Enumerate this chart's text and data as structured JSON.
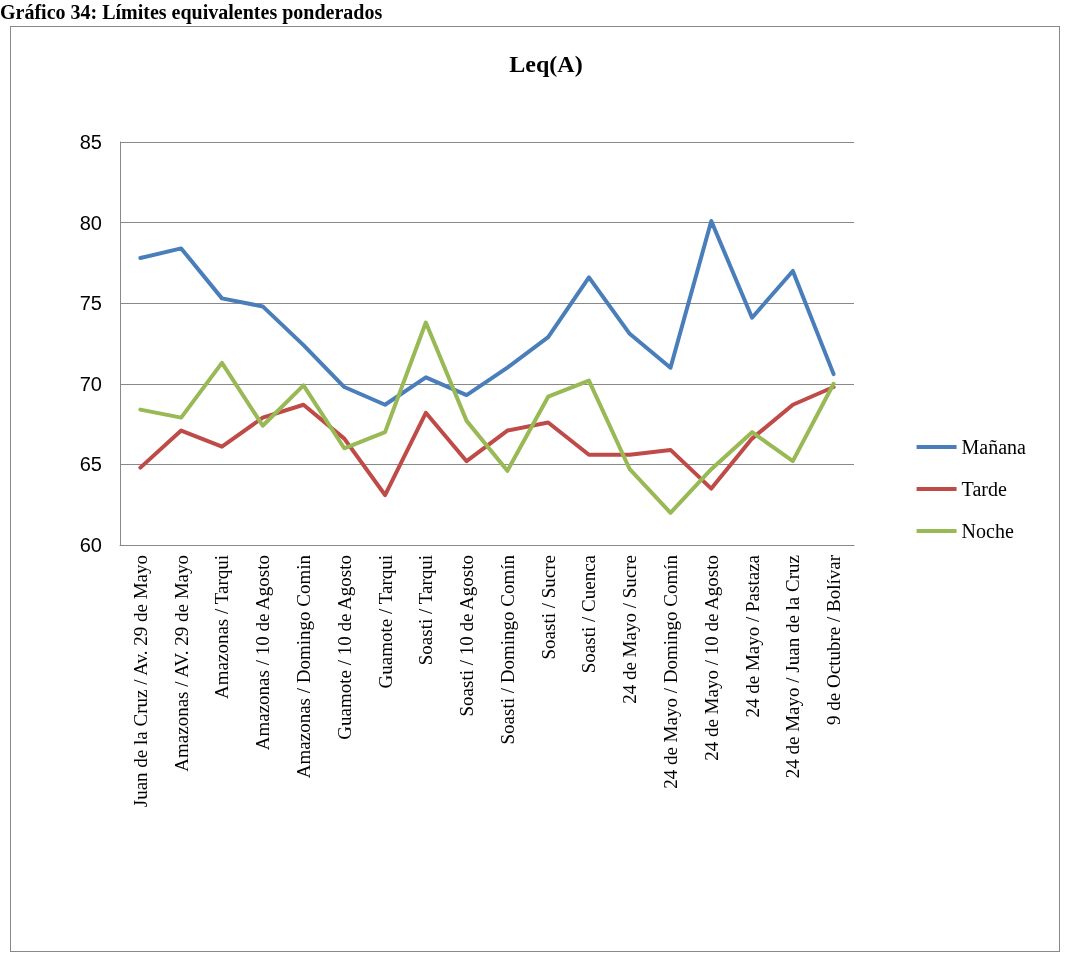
{
  "chart_data": {
    "type": "line",
    "title": "Leq(A)",
    "annotations": [
      "Gráfico 34: Límites equivalentes ponderados"
    ],
    "categories": [
      "Juan de la Cruz / Av. 29 de Mayo",
      "Amazonas / AV. 29 de Mayo",
      "Amazonas / Tarqui",
      "Amazonas / 10 de Agosto",
      "Amazonas / Domingo Comin",
      "Guamote / 10 de Agosto",
      "Guamote / Tarqui",
      "Soasti / Tarqui",
      "Soasti / 10 de Agosto",
      "Soasti / Domingo Comín",
      "Soasti / Sucre",
      "Soasti / Cuenca",
      "24 de Mayo / Sucre",
      "24 de Mayo / Domingo Comín",
      "24 de Mayo / 10 de Agosto",
      "24 de Mayo / Pastaza",
      "24 de Mayo / Juan de la Cruz",
      "9 de Octubre / Bolívar"
    ],
    "series": [
      {
        "name": "Mañana",
        "color": "#4a7ebb",
        "values": [
          77.8,
          78.4,
          75.3,
          74.8,
          72.4,
          69.8,
          68.7,
          70.4,
          69.3,
          71.0,
          72.9,
          76.6,
          73.1,
          71.0,
          80.1,
          74.1,
          77.0,
          70.6
        ]
      },
      {
        "name": "Tarde",
        "color": "#be4b48",
        "values": [
          64.8,
          67.1,
          66.1,
          67.9,
          68.7,
          66.6,
          63.1,
          68.2,
          65.2,
          67.1,
          67.6,
          65.6,
          65.6,
          65.9,
          63.5,
          66.6,
          68.7,
          69.8
        ]
      },
      {
        "name": "Noche",
        "color": "#98b954",
        "values": [
          68.4,
          67.9,
          71.3,
          67.4,
          69.9,
          66.0,
          67.0,
          73.8,
          67.7,
          64.6,
          69.2,
          70.2,
          64.7,
          62.0,
          64.7,
          67.0,
          65.2,
          70.0
        ]
      }
    ],
    "ylim": [
      60,
      85
    ],
    "yticks": [
      60,
      65,
      70,
      75,
      80,
      85
    ],
    "grid": "y",
    "legend": "right",
    "marker": "none",
    "line_style": "solid"
  }
}
